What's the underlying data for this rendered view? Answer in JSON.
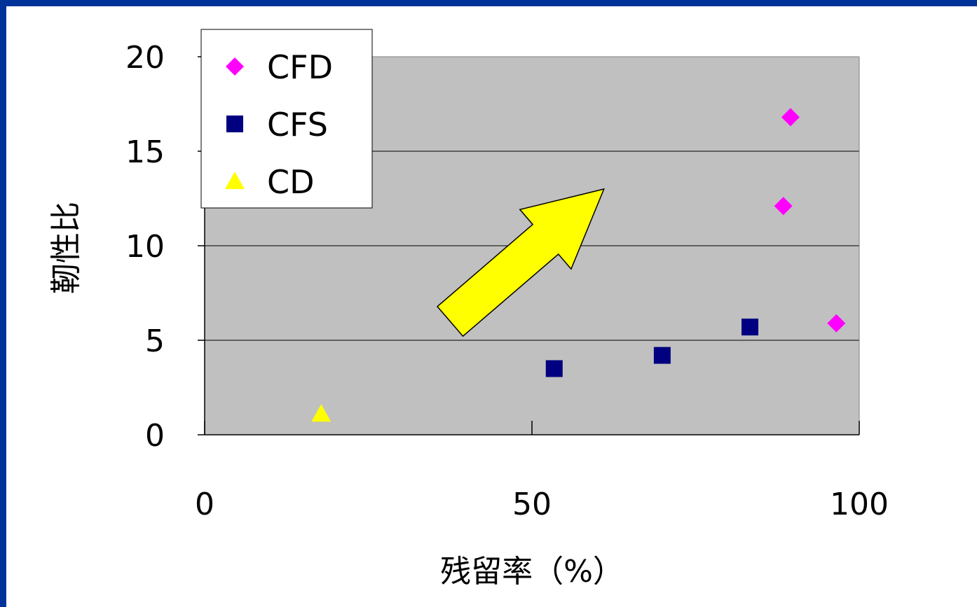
{
  "chart_data": {
    "type": "scatter",
    "title": "",
    "xlabel": "残留率（%）",
    "ylabel": "靭性比",
    "xlim": [
      0,
      100
    ],
    "ylim": [
      0,
      20
    ],
    "x_ticks": [
      0,
      50,
      100
    ],
    "y_ticks": [
      0,
      5,
      10,
      15,
      20
    ],
    "grid": "horizontal",
    "legend_position": "top-left",
    "plot_background": "#c0c0c0",
    "series": [
      {
        "name": "CFD",
        "marker": "diamond",
        "color": "#ff00ff",
        "x": [
          89.5,
          88.4,
          96.5
        ],
        "y": [
          16.8,
          12.1,
          5.9
        ]
      },
      {
        "name": "CFS",
        "marker": "square",
        "color": "#000080",
        "x": [
          53.4,
          69.9,
          83.3
        ],
        "y": [
          3.5,
          4.2,
          5.7
        ]
      },
      {
        "name": "CD",
        "marker": "triangle",
        "color": "#ffff00",
        "x": [
          17.8
        ],
        "y": [
          1.1
        ]
      }
    ],
    "annotation": {
      "type": "arrow",
      "color": "#ffff00",
      "from": [
        37.5,
        6.0
      ],
      "to": [
        61.0,
        13.0
      ]
    }
  }
}
